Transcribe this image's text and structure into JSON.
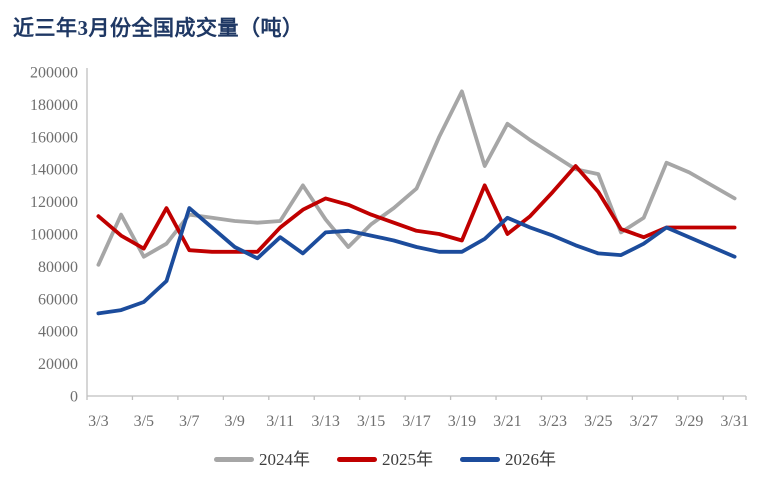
{
  "title": "近三年3月份全国成交量（吨）",
  "chart_data": {
    "type": "line",
    "title": "近三年3月份全国成交量（吨）",
    "xlabel": "",
    "ylabel": "",
    "x": [
      "3/3",
      "3/4",
      "3/5",
      "3/6",
      "3/7",
      "3/8",
      "3/9",
      "3/10",
      "3/11",
      "3/12",
      "3/13",
      "3/14",
      "3/15",
      "3/16",
      "3/17",
      "3/18",
      "3/19",
      "3/20",
      "3/21",
      "3/22",
      "3/23",
      "3/24",
      "3/25",
      "3/26",
      "3/27",
      "3/28",
      "3/29",
      "3/30",
      "3/31"
    ],
    "x_label_every": 2,
    "x_tick_labels_shown": [
      "3/3",
      "3/5",
      "3/7",
      "3/9",
      "3/11",
      "3/13",
      "3/15",
      "3/17",
      "3/19",
      "3/21",
      "3/23",
      "3/25",
      "3/27",
      "3/29",
      "3/31"
    ],
    "ylim": [
      0,
      200000
    ],
    "ytick_step": 20000,
    "grid": false,
    "legend_position": "bottom",
    "axis_color": "#BFBFBF",
    "tick_text_color": "#6f6f6f",
    "title_color": "#1F3864",
    "series": [
      {
        "name": "2024年",
        "color": "#A6A6A6",
        "values": [
          81000,
          112000,
          86000,
          94000,
          112000,
          110000,
          108000,
          107000,
          108000,
          130000,
          109000,
          92000,
          106000,
          116000,
          128000,
          160000,
          188000,
          142000,
          168000,
          158000,
          149000,
          140000,
          137000,
          101000,
          110000,
          144000,
          138000,
          130000,
          122000
        ]
      },
      {
        "name": "2025年",
        "color": "#C00000",
        "values": [
          111000,
          99000,
          91000,
          116000,
          90000,
          89000,
          89000,
          89000,
          104000,
          115000,
          122000,
          118000,
          112000,
          107000,
          102000,
          100000,
          96000,
          130000,
          100000,
          111000,
          126000,
          142000,
          126000,
          103000,
          98000,
          104000,
          104000,
          104000,
          104000
        ]
      },
      {
        "name": "2026年",
        "color": "#1C4C9C",
        "values": [
          51000,
          53000,
          58000,
          71000,
          116000,
          104000,
          92000,
          85000,
          98000,
          88000,
          101000,
          102000,
          99000,
          96000,
          92000,
          89000,
          89000,
          97000,
          110000,
          104000,
          99000,
          93000,
          88000,
          87000,
          94000,
          104000,
          98000,
          92000,
          86000
        ]
      }
    ]
  }
}
